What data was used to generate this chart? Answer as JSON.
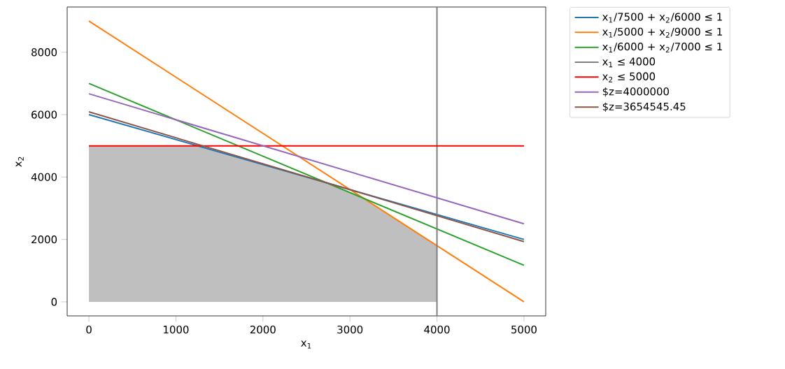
{
  "chart_data": {
    "type": "line",
    "xlabel": "x$_{1}$",
    "ylabel": "x$_{2}$",
    "xlim": [
      -250,
      5250
    ],
    "ylim": [
      -450,
      9450
    ],
    "xticks": [
      0,
      1000,
      2000,
      3000,
      4000,
      5000
    ],
    "yticks": [
      0,
      2000,
      4000,
      6000,
      8000
    ],
    "legend": "right",
    "grid": false,
    "series": [
      {
        "type": "area",
        "color": "#bfbfbf",
        "x": [
          0,
          1250,
          2730,
          3160,
          4000
        ],
        "values": [
          5000,
          5000,
          3820,
          3320,
          1800
        ]
      },
      {
        "name": "x$_{1}$/7500 + x$_{2}$/6000 ≤ 1",
        "color": "#1f77b4",
        "x": [
          0,
          5000
        ],
        "values": [
          6000,
          2000
        ]
      },
      {
        "name": "x$_{1}$/5000 + x$_{2}$/9000 ≤ 1",
        "color": "#ff7f0e",
        "x": [
          0,
          5000
        ],
        "values": [
          9000,
          0
        ]
      },
      {
        "name": "x$_{1}$/6000 + x$_{2}$/7000 ≤ 1",
        "color": "#2ca02c",
        "x": [
          0,
          5000
        ],
        "values": [
          7000,
          1170
        ]
      },
      {
        "name": "x$_{1}$ ≤ 4000",
        "color": "#7f7f7f",
        "x": [
          4000,
          4000
        ],
        "values": [
          -450,
          9450
        ]
      },
      {
        "name": "x$_{2}$ ≤ 5000",
        "color": "#ff0000",
        "x": [
          0,
          5000
        ],
        "values": [
          5000,
          5000
        ]
      },
      {
        "name": "$z=4000000",
        "color": "#9467bd",
        "x": [
          0,
          5000
        ],
        "values": [
          6670,
          2500
        ]
      },
      {
        "name": "$z=3654545.45",
        "color": "#8c564b",
        "x": [
          0,
          5000
        ],
        "values": [
          6090,
          1930
        ]
      }
    ]
  }
}
